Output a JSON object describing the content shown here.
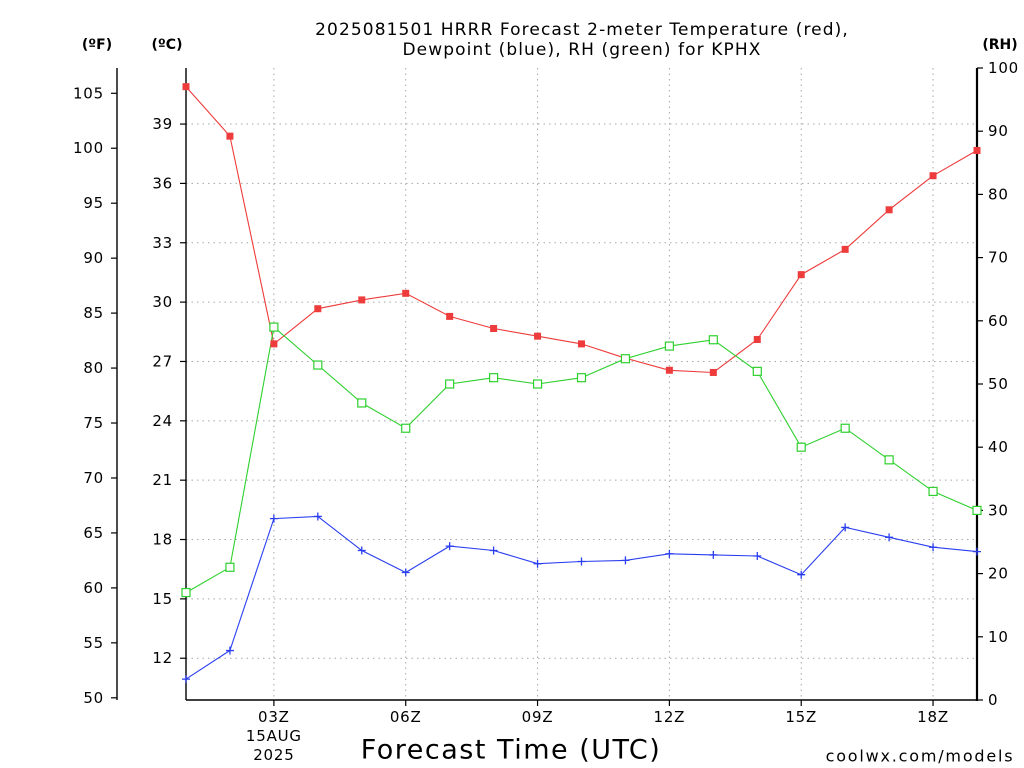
{
  "chart_data": {
    "type": "line",
    "title": [
      "2025081501 HRRR Forecast 2-meter Temperature (red),",
      "Dewpoint (blue), RH (green) for KPHX"
    ],
    "xlabel": "Forecast Time (UTC)",
    "x": [
      1,
      2,
      3,
      4,
      5,
      6,
      7,
      8,
      9,
      10,
      11,
      12,
      13,
      14,
      15,
      16,
      17,
      18,
      19
    ],
    "xlim": [
      1,
      19
    ],
    "x_ticks": [
      "03Z",
      "06Z",
      "09Z",
      "12Z",
      "15Z",
      "18Z"
    ],
    "x_date_label": [
      "15AUG",
      "2025"
    ],
    "y_axes": {
      "fahrenheit": {
        "label": "(ºF)",
        "ticks": [
          50,
          55,
          60,
          65,
          70,
          75,
          80,
          85,
          90,
          95,
          100,
          105
        ],
        "ylim": [
          49.8,
          107.3
        ]
      },
      "celsius": {
        "label": "(ºC)",
        "ticks": [
          12,
          15,
          18,
          21,
          24,
          27,
          30,
          33,
          36,
          39
        ]
      },
      "rh": {
        "label": "(RH)",
        "ticks": [
          0,
          10,
          20,
          30,
          40,
          50,
          60,
          70,
          80,
          90,
          100
        ],
        "ylim": [
          0,
          100
        ]
      }
    },
    "grid": true,
    "series": [
      {
        "color": "#ee3b3b",
        "marker": "filled-square",
        "secondary_y": false,
        "values": [
          105.6,
          101.1,
          82.2,
          85.4,
          86.2,
          86.8,
          84.7,
          83.6,
          82.9,
          82.2,
          80.9,
          79.8,
          79.6,
          82.6,
          88.5,
          90.8,
          94.4,
          97.5,
          99.8
        ]
      },
      {
        "color": "#2a3ef0",
        "marker": "plus",
        "secondary_y": false,
        "values": [
          51.7,
          54.3,
          66.3,
          66.5,
          63.4,
          61.4,
          63.8,
          63.4,
          62.2,
          62.4,
          62.5,
          63.1,
          63.0,
          62.9,
          61.2,
          65.5,
          64.6,
          63.7,
          63.3
        ]
      },
      {
        "color": "#2ed02e",
        "marker": "open-square",
        "secondary_y": true,
        "values": [
          17,
          21,
          59,
          53,
          47,
          43,
          50,
          51,
          50,
          51,
          54,
          56,
          57,
          52,
          40,
          43,
          38,
          33,
          30
        ]
      }
    ]
  },
  "credit": {
    "text": "coolwx.com/models",
    "color": "#e8403c"
  }
}
